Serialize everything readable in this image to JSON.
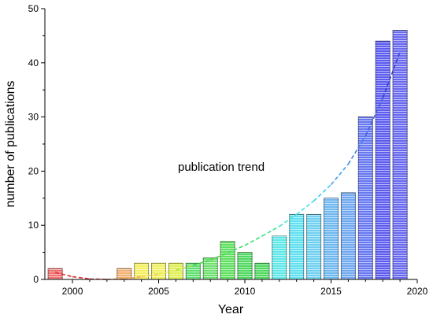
{
  "chart_data": {
    "type": "bar",
    "xlabel": "Year",
    "ylabel": "number of publications",
    "xlim": [
      1998.4,
      2020
    ],
    "ylim": [
      0,
      50
    ],
    "x_ticks": [
      2000,
      2005,
      2010,
      2015,
      2020
    ],
    "y_ticks": [
      0,
      10,
      20,
      30,
      40,
      50
    ],
    "grid": false,
    "x": [
      1999,
      2000,
      2001,
      2002,
      2003,
      2004,
      2005,
      2006,
      2007,
      2008,
      2009,
      2010,
      2011,
      2012,
      2013,
      2014,
      2015,
      2016,
      2017,
      2018,
      2019
    ],
    "values": [
      2,
      0,
      0,
      0,
      2,
      3,
      3,
      3,
      3,
      4,
      7,
      5,
      3,
      8,
      12,
      12,
      15,
      16,
      30,
      44,
      46
    ],
    "bar_colors": [
      "#f07070",
      "#f29060",
      "#f4a858",
      "#f4c060",
      "#f4b070",
      "#f4f060",
      "#f0f060",
      "#e0f050",
      "#60e070",
      "#70e070",
      "#60e060",
      "#50d860",
      "#50d860",
      "#60e8e8",
      "#60e0f0",
      "#70d0f0",
      "#70b8f0",
      "#70a8f0",
      "#6878f0",
      "#5c5cf0",
      "#6a6af0"
    ],
    "annotation": "publication trend",
    "trend": {
      "type": "line",
      "style": "dashed",
      "x": [
        1999,
        2000,
        2001,
        2002,
        2003,
        2004,
        2005,
        2006,
        2007,
        2008,
        2009,
        2010,
        2011,
        2012,
        2013,
        2014,
        2015,
        2016,
        2017,
        2018,
        2019
      ],
      "y": [
        1.3,
        0.5,
        0.1,
        0.0,
        0.1,
        0.5,
        1.0,
        1.7,
        2.6,
        3.6,
        4.9,
        6.3,
        8.0,
        9.8,
        12.0,
        14.5,
        17.5,
        21.3,
        26.5,
        33.5,
        42.0
      ],
      "colors": [
        "#e03030",
        "#e03030",
        "#e05050",
        "#e08050",
        "#f0a060",
        "#f0d060",
        "#e8e850",
        "#b0e050",
        "#40d840",
        "#40d840",
        "#40d860",
        "#40e070",
        "#40e090",
        "#40e8c8",
        "#40e0e8",
        "#40c8f0",
        "#40a0f0",
        "#4080e8",
        "#4060e0",
        "#3040d0",
        "#3040d0"
      ]
    }
  }
}
